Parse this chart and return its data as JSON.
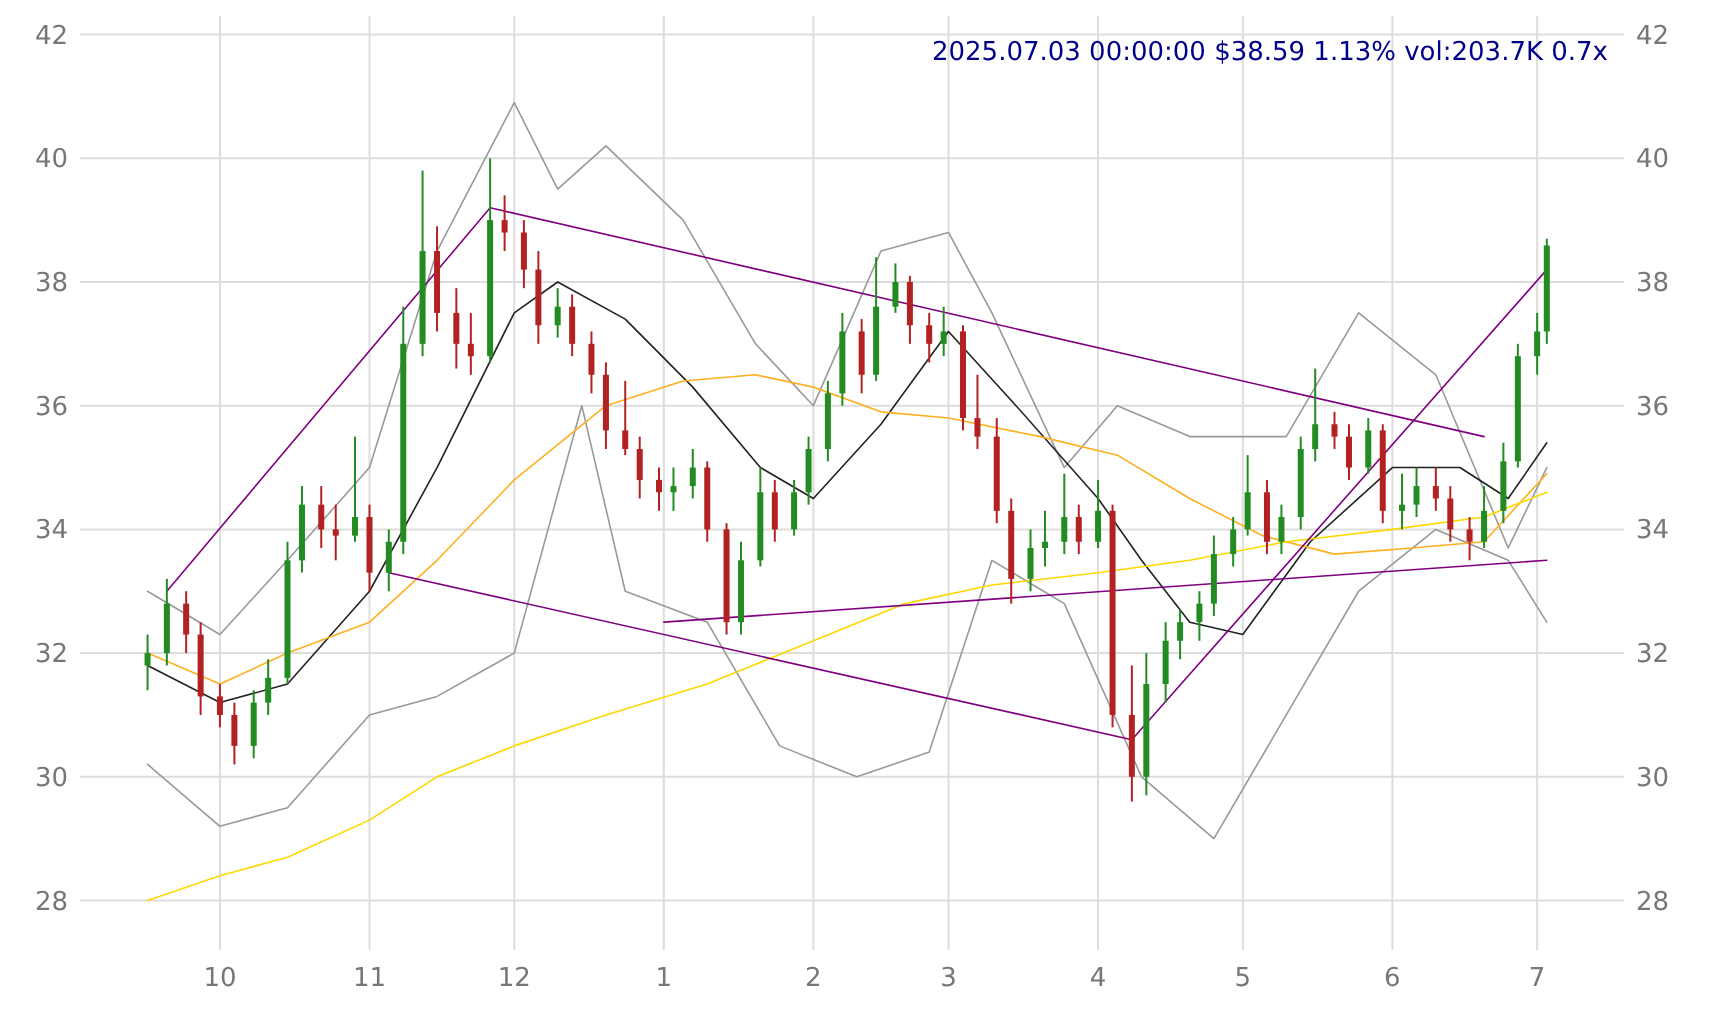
{
  "chart_data": {
    "type": "candlestick",
    "title": "2025.07.03 00:00:00 $38.59 1.13% vol:203.7K 0.7x",
    "x": [
      "2024-09-16",
      "2024-09-20",
      "2024-09-24",
      "2024-09-27",
      "2024-10-01",
      "2024-10-04",
      "2024-10-08",
      "2024-10-11",
      "2024-10-15",
      "2024-10-18",
      "2024-10-22",
      "2024-10-25",
      "2024-10-29",
      "2024-11-01",
      "2024-11-05",
      "2024-11-08",
      "2024-11-12",
      "2024-11-15",
      "2024-11-19",
      "2024-11-22",
      "2024-11-26",
      "2024-11-29",
      "2024-12-03",
      "2024-12-06",
      "2024-12-10",
      "2024-12-13",
      "2024-12-17",
      "2024-12-20",
      "2024-12-24",
      "2024-12-27",
      "2024-12-31",
      "2025-01-03",
      "2025-01-07",
      "2025-01-10",
      "2025-01-14",
      "2025-01-17",
      "2025-01-21",
      "2025-01-24",
      "2025-01-28",
      "2025-01-31",
      "2025-02-04",
      "2025-02-07",
      "2025-02-11",
      "2025-02-14",
      "2025-02-18",
      "2025-02-21",
      "2025-02-25",
      "2025-02-28",
      "2025-03-04",
      "2025-03-07",
      "2025-03-11",
      "2025-03-14",
      "2025-03-18",
      "2025-03-21",
      "2025-03-25",
      "2025-03-28",
      "2025-04-01",
      "2025-04-04",
      "2025-04-08",
      "2025-04-11",
      "2025-04-15",
      "2025-04-18",
      "2025-04-22",
      "2025-04-25",
      "2025-04-29",
      "2025-05-02",
      "2025-05-06",
      "2025-05-09",
      "2025-05-13",
      "2025-05-16",
      "2025-05-20",
      "2025-05-23",
      "2025-05-27",
      "2025-05-30",
      "2025-06-03",
      "2025-06-06",
      "2025-06-10",
      "2025-06-13",
      "2025-06-17",
      "2025-06-20",
      "2025-06-24",
      "2025-06-27",
      "2025-07-01",
      "2025-07-03"
    ],
    "ohlc": [
      [
        31.8,
        32.3,
        31.4,
        32.0
      ],
      [
        32.0,
        33.2,
        31.8,
        32.8
      ],
      [
        32.8,
        33.0,
        32.0,
        32.3
      ],
      [
        32.3,
        32.5,
        31.0,
        31.3
      ],
      [
        31.3,
        31.5,
        30.8,
        31.0
      ],
      [
        31.0,
        31.2,
        30.2,
        30.5
      ],
      [
        30.5,
        31.4,
        30.3,
        31.2
      ],
      [
        31.2,
        31.9,
        31.0,
        31.6
      ],
      [
        31.6,
        33.8,
        31.5,
        33.5
      ],
      [
        33.5,
        34.7,
        33.3,
        34.4
      ],
      [
        34.4,
        34.7,
        33.7,
        34.0
      ],
      [
        34.0,
        34.4,
        33.5,
        33.9
      ],
      [
        33.9,
        35.5,
        33.8,
        34.2
      ],
      [
        34.2,
        34.4,
        33.0,
        33.3
      ],
      [
        33.3,
        34.0,
        33.0,
        33.8
      ],
      [
        33.8,
        37.6,
        33.6,
        37.0
      ],
      [
        37.0,
        39.8,
        36.8,
        38.5
      ],
      [
        38.5,
        38.9,
        37.2,
        37.5
      ],
      [
        37.5,
        37.9,
        36.6,
        37.0
      ],
      [
        37.0,
        37.5,
        36.5,
        36.8
      ],
      [
        36.8,
        40.0,
        36.7,
        39.0
      ],
      [
        39.0,
        39.4,
        38.5,
        38.8
      ],
      [
        38.8,
        39.0,
        37.9,
        38.2
      ],
      [
        38.2,
        38.5,
        37.0,
        37.3
      ],
      [
        37.3,
        37.9,
        37.1,
        37.6
      ],
      [
        37.6,
        37.8,
        36.8,
        37.0
      ],
      [
        37.0,
        37.2,
        36.2,
        36.5
      ],
      [
        36.5,
        36.7,
        35.3,
        35.6
      ],
      [
        35.6,
        36.4,
        35.2,
        35.3
      ],
      [
        35.3,
        35.5,
        34.5,
        34.8
      ],
      [
        34.8,
        35.0,
        34.3,
        34.6
      ],
      [
        34.6,
        35.0,
        34.3,
        34.7
      ],
      [
        34.7,
        35.3,
        34.5,
        35.0
      ],
      [
        35.0,
        35.1,
        33.8,
        34.0
      ],
      [
        34.0,
        34.1,
        32.3,
        32.5
      ],
      [
        32.5,
        33.8,
        32.3,
        33.5
      ],
      [
        33.5,
        35.0,
        33.4,
        34.6
      ],
      [
        34.6,
        34.8,
        33.8,
        34.0
      ],
      [
        34.0,
        34.8,
        33.9,
        34.6
      ],
      [
        34.6,
        35.5,
        34.4,
        35.3
      ],
      [
        35.3,
        36.4,
        35.1,
        36.2
      ],
      [
        36.2,
        37.5,
        36.0,
        37.2
      ],
      [
        37.2,
        37.4,
        36.2,
        36.5
      ],
      [
        36.5,
        38.4,
        36.4,
        37.6
      ],
      [
        37.6,
        38.3,
        37.5,
        38.0
      ],
      [
        38.0,
        38.1,
        37.0,
        37.3
      ],
      [
        37.3,
        37.5,
        36.7,
        37.0
      ],
      [
        37.0,
        37.6,
        36.8,
        37.2
      ],
      [
        37.2,
        37.3,
        35.6,
        35.8
      ],
      [
        35.8,
        36.5,
        35.3,
        35.5
      ],
      [
        35.5,
        35.8,
        34.1,
        34.3
      ],
      [
        34.3,
        34.5,
        32.8,
        33.2
      ],
      [
        33.2,
        34.0,
        33.0,
        33.7
      ],
      [
        33.7,
        34.3,
        33.4,
        33.8
      ],
      [
        33.8,
        34.9,
        33.6,
        34.2
      ],
      [
        34.2,
        34.4,
        33.6,
        33.8
      ],
      [
        33.8,
        34.8,
        33.7,
        34.3
      ],
      [
        34.3,
        34.4,
        30.8,
        31.0
      ],
      [
        31.0,
        31.8,
        29.6,
        30.0
      ],
      [
        30.0,
        32.0,
        29.7,
        31.5
      ],
      [
        31.5,
        32.5,
        31.2,
        32.2
      ],
      [
        32.2,
        32.7,
        31.9,
        32.5
      ],
      [
        32.5,
        33.0,
        32.2,
        32.8
      ],
      [
        32.8,
        33.9,
        32.6,
        33.6
      ],
      [
        33.6,
        34.2,
        33.4,
        34.0
      ],
      [
        34.0,
        35.2,
        33.9,
        34.6
      ],
      [
        34.6,
        34.8,
        33.6,
        33.8
      ],
      [
        33.8,
        34.4,
        33.6,
        34.2
      ],
      [
        34.2,
        35.5,
        34.0,
        35.3
      ],
      [
        35.3,
        36.6,
        35.1,
        35.7
      ],
      [
        35.7,
        35.9,
        35.3,
        35.5
      ],
      [
        35.5,
        35.7,
        34.8,
        35.0
      ],
      [
        35.0,
        35.8,
        34.9,
        35.6
      ],
      [
        35.6,
        35.7,
        34.1,
        34.3
      ],
      [
        34.3,
        34.9,
        34.0,
        34.4
      ],
      [
        34.4,
        35.0,
        34.2,
        34.7
      ],
      [
        34.7,
        35.0,
        34.3,
        34.5
      ],
      [
        34.5,
        34.7,
        33.8,
        34.0
      ],
      [
        34.0,
        34.2,
        33.5,
        33.8
      ],
      [
        33.8,
        34.7,
        33.7,
        34.3
      ],
      [
        34.3,
        35.4,
        34.1,
        35.1
      ],
      [
        35.1,
        37.0,
        35.0,
        36.8
      ],
      [
        36.8,
        37.5,
        36.5,
        37.2
      ],
      [
        37.2,
        38.7,
        37.0,
        38.59
      ]
    ],
    "series": [
      {
        "type": "line",
        "color": "#999999",
        "x": [
          "2024-09-16",
          "2024-10-01",
          "2024-10-15",
          "2024-11-01",
          "2024-11-15",
          "2024-12-01",
          "2024-12-10",
          "2024-12-20",
          "2025-01-05",
          "2025-01-20",
          "2025-02-01",
          "2025-02-15",
          "2025-03-01",
          "2025-03-10",
          "2025-03-25",
          "2025-04-05",
          "2025-04-20",
          "2025-05-10",
          "2025-05-25",
          "2025-06-10",
          "2025-06-25",
          "2025-07-03"
        ],
        "values": [
          33.0,
          32.3,
          33.5,
          35.0,
          38.5,
          40.9,
          39.5,
          40.2,
          39.0,
          37.0,
          36.0,
          38.5,
          38.8,
          37.5,
          35.0,
          36.0,
          35.5,
          35.5,
          37.5,
          36.5,
          33.7,
          35.0
        ]
      },
      {
        "type": "line",
        "color": "#999999",
        "x": [
          "2024-09-16",
          "2024-10-01",
          "2024-10-15",
          "2024-11-01",
          "2024-11-15",
          "2024-12-01",
          "2024-12-15",
          "2024-12-24",
          "2025-01-10",
          "2025-01-25",
          "2025-02-10",
          "2025-02-25",
          "2025-03-10",
          "2025-03-25",
          "2025-04-10",
          "2025-04-25",
          "2025-05-10",
          "2025-05-25",
          "2025-06-10",
          "2025-06-25",
          "2025-07-03"
        ],
        "values": [
          30.2,
          29.2,
          29.5,
          31.0,
          31.3,
          32.0,
          36.0,
          33.0,
          32.5,
          30.5,
          30.0,
          30.4,
          33.5,
          32.8,
          30.0,
          29.0,
          31.0,
          33.0,
          34.0,
          33.5,
          32.5
        ]
      },
      {
        "type": "line",
        "color": "#222222",
        "x": [
          "2024-09-16",
          "2024-10-01",
          "2024-10-15",
          "2024-11-01",
          "2024-11-15",
          "2024-12-01",
          "2024-12-10",
          "2024-12-24",
          "2025-01-07",
          "2025-01-21",
          "2025-02-01",
          "2025-02-15",
          "2025-03-01",
          "2025-03-15",
          "2025-04-01",
          "2025-04-10",
          "2025-04-20",
          "2025-05-01",
          "2025-05-15",
          "2025-06-01",
          "2025-06-15",
          "2025-06-25",
          "2025-07-03"
        ],
        "values": [
          31.8,
          31.2,
          31.5,
          33.0,
          35.0,
          37.5,
          38.0,
          37.4,
          36.3,
          35.0,
          34.5,
          35.7,
          37.2,
          36.0,
          34.5,
          33.5,
          32.5,
          32.3,
          33.8,
          35.0,
          35.0,
          34.5,
          35.4
        ]
      },
      {
        "type": "line",
        "color": "#ffb020",
        "x": [
          "2024-09-16",
          "2024-10-01",
          "2024-10-15",
          "2024-11-01",
          "2024-11-15",
          "2024-12-01",
          "2024-12-20",
          "2025-01-05",
          "2025-01-20",
          "2025-02-01",
          "2025-02-15",
          "2025-03-01",
          "2025-03-20",
          "2025-04-05",
          "2025-04-20",
          "2025-05-05",
          "2025-05-20",
          "2025-06-05",
          "2025-06-20",
          "2025-07-03"
        ],
        "values": [
          32.0,
          31.5,
          32.0,
          32.5,
          33.5,
          34.8,
          36.0,
          36.4,
          36.5,
          36.3,
          35.9,
          35.8,
          35.5,
          35.2,
          34.5,
          33.9,
          33.6,
          33.7,
          33.8,
          34.9
        ]
      },
      {
        "type": "line",
        "color": "#ffd700",
        "x": [
          "2024-09-16",
          "2024-10-01",
          "2024-10-15",
          "2024-11-01",
          "2024-11-15",
          "2024-12-01",
          "2024-12-20",
          "2025-01-10",
          "2025-02-01",
          "2025-02-20",
          "2025-03-10",
          "2025-04-01",
          "2025-04-20",
          "2025-05-10",
          "2025-06-01",
          "2025-06-20",
          "2025-07-03"
        ],
        "values": [
          28.0,
          28.4,
          28.7,
          29.3,
          30.0,
          30.5,
          31.0,
          31.5,
          32.2,
          32.8,
          33.1,
          33.3,
          33.5,
          33.8,
          34.0,
          34.2,
          34.6
        ]
      },
      {
        "type": "line",
        "color": "#800080",
        "x": [
          "2024-09-20",
          "2024-11-26"
        ],
        "values": [
          33.0,
          39.2
        ]
      },
      {
        "type": "line",
        "color": "#800080",
        "x": [
          "2024-11-26",
          "2025-06-20"
        ],
        "values": [
          39.2,
          35.5
        ]
      },
      {
        "type": "line",
        "color": "#800080",
        "x": [
          "2024-11-05",
          "2025-04-08"
        ],
        "values": [
          33.3,
          30.6
        ]
      },
      {
        "type": "line",
        "color": "#800080",
        "x": [
          "2025-04-08",
          "2025-07-03"
        ],
        "values": [
          30.6,
          38.2
        ]
      },
      {
        "type": "line",
        "color": "#800080",
        "x": [
          "2025-01-01",
          "2025-07-03"
        ],
        "values": [
          32.5,
          33.5
        ]
      }
    ],
    "xlim": [
      "2024-09-02",
      "2025-07-19"
    ],
    "xticks": [
      {
        "value": "2024-10-01",
        "label": "10"
      },
      {
        "value": "2024-11-01",
        "label": "11"
      },
      {
        "value": "2024-12-01",
        "label": "12"
      },
      {
        "value": "2025-01-01",
        "label": "1"
      },
      {
        "value": "2025-02-01",
        "label": "2"
      },
      {
        "value": "2025-03-01",
        "label": "3"
      },
      {
        "value": "2025-04-01",
        "label": "4"
      },
      {
        "value": "2025-05-01",
        "label": "5"
      },
      {
        "value": "2025-06-01",
        "label": "6"
      },
      {
        "value": "2025-07-01",
        "label": "7"
      }
    ],
    "ylim": [
      27.2,
      42.3
    ],
    "yticks": [
      28,
      30,
      32,
      34,
      36,
      38,
      40,
      42
    ],
    "y2lim": [
      27.2,
      42.3
    ],
    "y2ticks": [
      28,
      30,
      32,
      34,
      36,
      38,
      40,
      42
    ],
    "grid": true
  }
}
